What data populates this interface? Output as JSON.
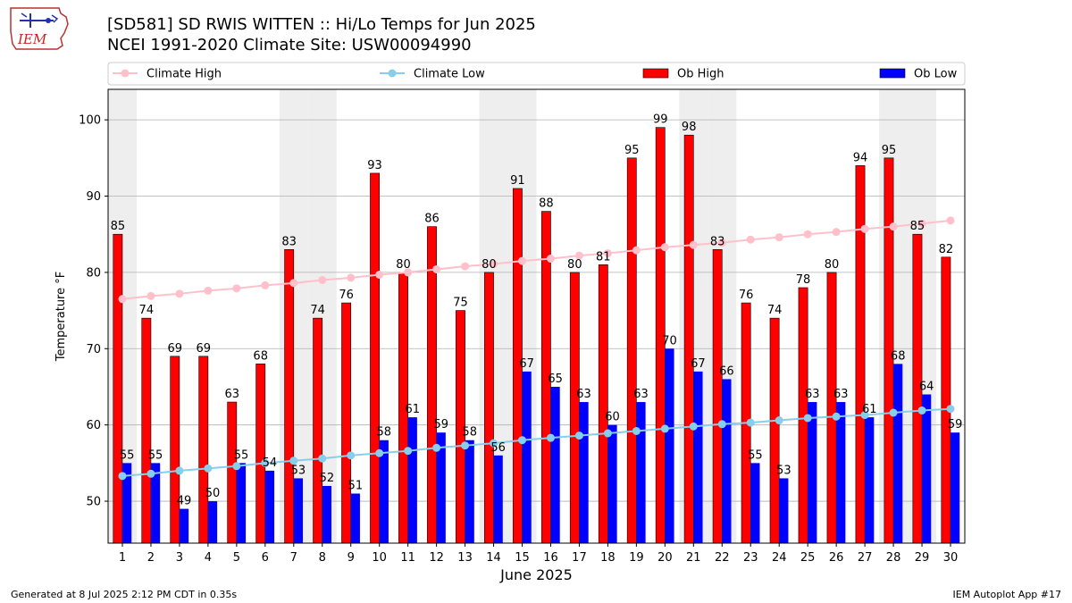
{
  "header": {
    "title_line1": "[SD581] SD RWIS WITTEN :: Hi/Lo Temps for Jun 2025",
    "title_line2": "NCEI 1991-2020 Climate Site: USW00094990",
    "logo_text": "IEM"
  },
  "footer": {
    "left": "Generated at 8 Jul 2025 2:12 PM CDT in 0.35s",
    "right": "IEM Autoplot App #17"
  },
  "colors": {
    "ob_high": "#ff0000",
    "ob_low": "#0000ff",
    "climate_high": "#ffc0cb",
    "climate_low": "#87ceeb",
    "weekend_band": "#eeeeee",
    "grid": "#b0b0b0"
  },
  "chart_data": {
    "type": "bar",
    "xlabel": "June 2025",
    "ylabel": "Temperature °F",
    "ylim": [
      44.5,
      104
    ],
    "yticks": [
      50,
      60,
      70,
      80,
      90,
      100
    ],
    "grid": "horizontal",
    "legend_position": "top",
    "categories": [
      1,
      2,
      3,
      4,
      5,
      6,
      7,
      8,
      9,
      10,
      11,
      12,
      13,
      14,
      15,
      16,
      17,
      18,
      19,
      20,
      21,
      22,
      23,
      24,
      25,
      26,
      27,
      28,
      29,
      30
    ],
    "shaded_days": [
      1,
      7,
      8,
      14,
      15,
      21,
      22,
      28,
      29
    ],
    "series": [
      {
        "name": "Ob High",
        "kind": "bar",
        "color": "#ff0000",
        "values": [
          85,
          74,
          69,
          69,
          63,
          68,
          83,
          74,
          76,
          93,
          80,
          86,
          75,
          80,
          91,
          88,
          80,
          81,
          95,
          99,
          98,
          83,
          76,
          74,
          78,
          80,
          94,
          95,
          85,
          82
        ]
      },
      {
        "name": "Ob Low",
        "kind": "bar",
        "color": "#0000ff",
        "values": [
          55,
          55,
          49,
          50,
          55,
          54,
          53,
          52,
          51,
          58,
          61,
          59,
          58,
          56,
          67,
          65,
          63,
          60,
          63,
          70,
          67,
          66,
          55,
          53,
          63,
          63,
          61,
          68,
          64,
          59
        ]
      },
      {
        "name": "Climate High",
        "kind": "line",
        "color": "#ffc0cb",
        "values": [
          76.5,
          76.9,
          77.2,
          77.6,
          77.9,
          78.3,
          78.6,
          79.0,
          79.3,
          79.7,
          80.0,
          80.4,
          80.8,
          81.1,
          81.5,
          81.8,
          82.2,
          82.5,
          82.9,
          83.3,
          83.6,
          83.9,
          84.3,
          84.6,
          85.0,
          85.3,
          85.7,
          86.0,
          86.4,
          86.8
        ]
      },
      {
        "name": "Climate Low",
        "kind": "line",
        "color": "#87ceeb",
        "values": [
          53.3,
          53.6,
          54.0,
          54.3,
          54.6,
          55.0,
          55.3,
          55.6,
          56.0,
          56.3,
          56.6,
          57.0,
          57.3,
          57.6,
          58.0,
          58.3,
          58.6,
          58.9,
          59.2,
          59.5,
          59.8,
          60.1,
          60.3,
          60.6,
          60.9,
          61.1,
          61.3,
          61.6,
          61.9,
          62.1
        ]
      }
    ]
  }
}
